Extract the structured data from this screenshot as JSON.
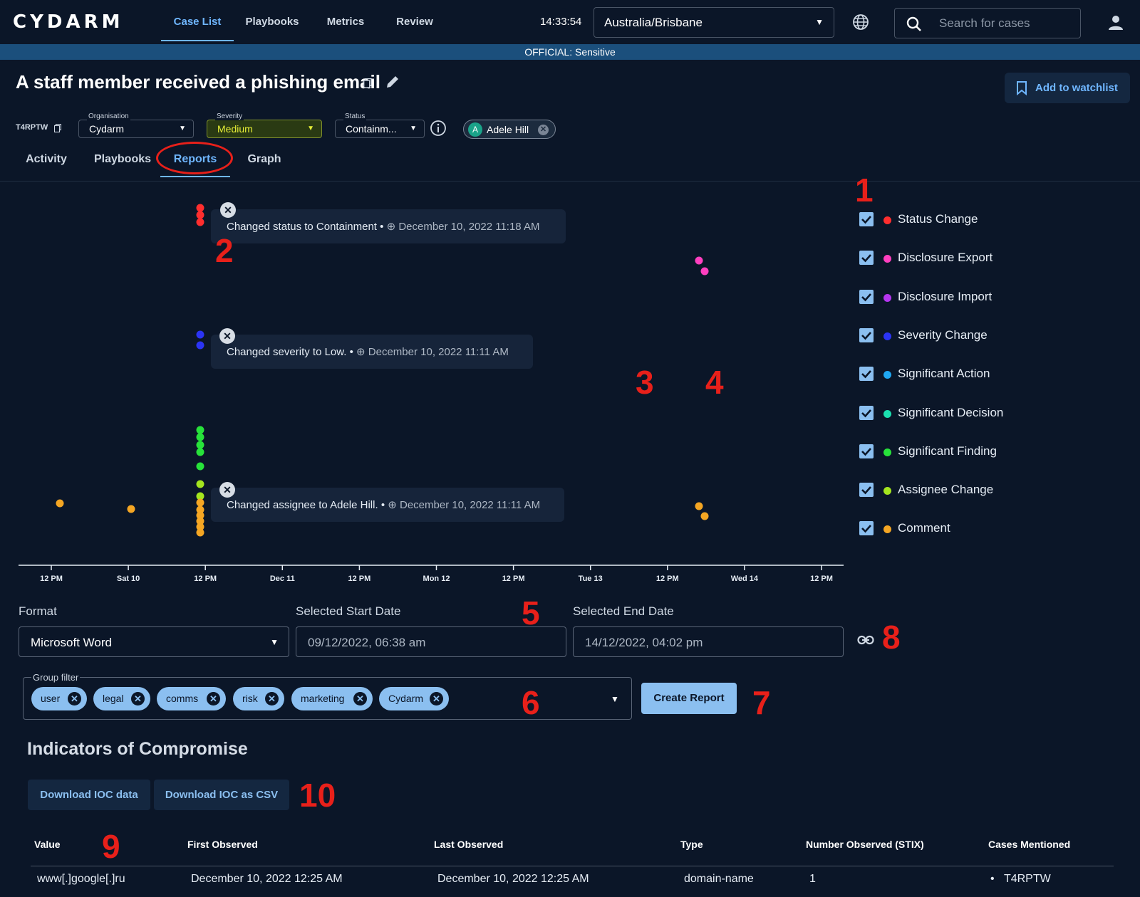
{
  "header": {
    "logo": "CYDARM",
    "nav": [
      "Case List",
      "Playbooks",
      "Metrics",
      "Review"
    ],
    "clock": "14:33:54",
    "timezone": "Australia/Brisbane",
    "search_placeholder": "Search for cases"
  },
  "banner": "OFFICIAL: Sensitive",
  "case": {
    "title": "A staff member received a phishing email",
    "id": "T4RPTW",
    "organisation_label": "Organisation",
    "organisation": "Cydarm",
    "severity_label": "Severity",
    "severity": "Medium",
    "status_label": "Status",
    "status": "Containm...",
    "assignee_initial": "A",
    "assignee": "Adele Hill",
    "watchlist": "Add to watchlist"
  },
  "tabs": [
    "Activity",
    "Playbooks",
    "Reports",
    "Graph"
  ],
  "legend": [
    {
      "label": "Status Change",
      "color": "#ff2e2e"
    },
    {
      "label": "Disclosure Export",
      "color": "#ff3fbf"
    },
    {
      "label": "Disclosure Import",
      "color": "#b535f0"
    },
    {
      "label": "Severity Change",
      "color": "#2b34f5"
    },
    {
      "label": "Significant Action",
      "color": "#1fa7f2"
    },
    {
      "label": "Significant Decision",
      "color": "#1be0b0"
    },
    {
      "label": "Significant Finding",
      "color": "#27e23a"
    },
    {
      "label": "Assignee Change",
      "color": "#a4e51e"
    },
    {
      "label": "Comment",
      "color": "#f5a623"
    }
  ],
  "tooltips": [
    {
      "text": "Changed status to Containment",
      "date": "December 10, 2022 11:18 AM"
    },
    {
      "text": "Changed severity to Low.",
      "date": "December 10, 2022 11:11 AM"
    },
    {
      "text": "Changed assignee to Adele Hill.",
      "date": "December 10, 2022 11:11 AM"
    }
  ],
  "timeline_ticks": [
    "12 PM",
    "Sat 10",
    "12 PM",
    "Dec 11",
    "12 PM",
    "Mon 12",
    "12 PM",
    "Tue 13",
    "12 PM",
    "Wed 14",
    "12 PM"
  ],
  "form": {
    "format_label": "Format",
    "format": "Microsoft Word",
    "start_label": "Selected Start Date",
    "start": "09/12/2022, 06:38 am",
    "end_label": "Selected End Date",
    "end": "14/12/2022, 04:02 pm",
    "group_label": "Group filter",
    "groups": [
      "user",
      "legal",
      "comms",
      "risk",
      "marketing",
      "Cydarm"
    ],
    "create": "Create Report"
  },
  "ioc": {
    "heading": "Indicators of Compromise",
    "download_data": "Download IOC data",
    "download_csv": "Download IOC as CSV",
    "columns": [
      "Value",
      "First Observed",
      "Last Observed",
      "Type",
      "Number Observed (STIX)",
      "Cases Mentioned"
    ],
    "rows": [
      [
        "www[.]google[.]ru",
        "December 10, 2022 12:25 AM",
        "December 10, 2022 12:25 AM",
        "domain-name",
        "1",
        "T4RPTW"
      ]
    ]
  },
  "annotations": [
    "1",
    "2",
    "3",
    "4",
    "5",
    "6",
    "7",
    "8",
    "9",
    "10"
  ]
}
